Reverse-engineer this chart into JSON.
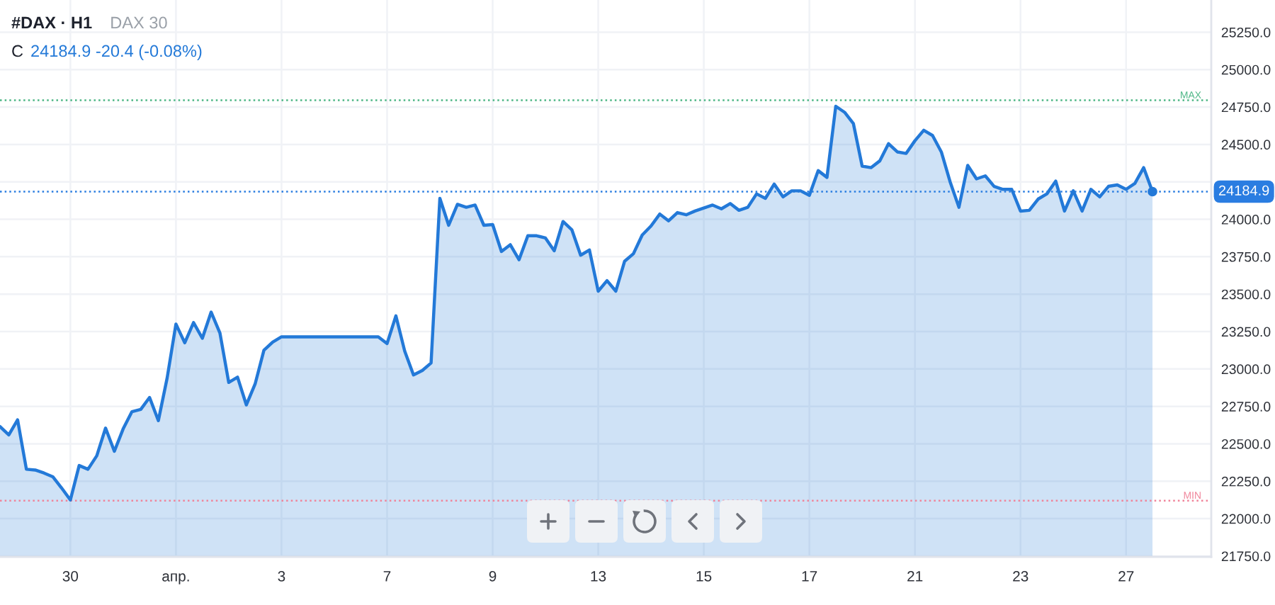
{
  "chart_data": {
    "type": "area",
    "title": "#DAX · H1",
    "subtitle": "DAX 30",
    "annotations": [
      "C",
      "24184.9 -20.4 (-0.08%)"
    ],
    "categories": [
      null,
      null,
      null,
      null,
      null,
      null,
      null,
      null,
      "30",
      null,
      null,
      null,
      null,
      null,
      null,
      null,
      null,
      null,
      null,
      null,
      "апр.",
      null,
      null,
      null,
      null,
      null,
      null,
      null,
      null,
      null,
      null,
      null,
      "3",
      null,
      null,
      null,
      null,
      null,
      null,
      null,
      null,
      null,
      null,
      null,
      "7",
      null,
      null,
      null,
      null,
      null,
      null,
      null,
      null,
      null,
      null,
      null,
      "9",
      null,
      null,
      null,
      null,
      null,
      null,
      null,
      null,
      null,
      null,
      null,
      "13",
      null,
      null,
      null,
      null,
      null,
      null,
      null,
      null,
      null,
      null,
      null,
      "15",
      null,
      null,
      null,
      null,
      null,
      null,
      null,
      null,
      null,
      null,
      null,
      "17",
      null,
      null,
      null,
      null,
      null,
      null,
      null,
      null,
      null,
      null,
      null,
      "21",
      null,
      null,
      null,
      null,
      null,
      null,
      null,
      null,
      null,
      null,
      null,
      "23",
      null,
      null,
      null,
      null,
      null,
      null,
      null,
      null,
      null,
      null,
      null,
      "27",
      null,
      null,
      null
    ],
    "ylim": [
      21745,
      25465
    ],
    "yticks": [
      {
        "value": 21750,
        "label": "21750.0"
      },
      {
        "value": 22000,
        "label": "22000.0"
      },
      {
        "value": 22250,
        "label": "22250.0"
      },
      {
        "value": 22500,
        "label": "22500.0"
      },
      {
        "value": 22750,
        "label": "22750.0"
      },
      {
        "value": 23000,
        "label": "23000.0"
      },
      {
        "value": 23250,
        "label": "23250.0"
      },
      {
        "value": 23500,
        "label": "23500.0"
      },
      {
        "value": 23750,
        "label": "23750.0"
      },
      {
        "value": 24000,
        "label": "24000.0"
      },
      {
        "value": 24250,
        "label": null
      },
      {
        "value": 24500,
        "label": "24500.0"
      },
      {
        "value": 24750,
        "label": "24750.0"
      },
      {
        "value": 25000,
        "label": "25000.0"
      },
      {
        "value": 25250,
        "label": "25250.0"
      }
    ],
    "grid": true,
    "series": [
      {
        "color": "#2379d8",
        "values": [
          22615,
          22560,
          22660,
          22330,
          22325,
          22305,
          22280,
          22205,
          22125,
          22355,
          22330,
          22420,
          22605,
          22450,
          22600,
          22715,
          22730,
          22810,
          22655,
          22940,
          23300,
          23175,
          23310,
          23205,
          23380,
          23240,
          22910,
          22945,
          22760,
          22900,
          23125,
          23180,
          23215,
          23215,
          23215,
          23215,
          23215,
          23215,
          23215,
          23215,
          23215,
          23215,
          23215,
          23215,
          23170,
          23355,
          23120,
          22960,
          22990,
          23040,
          24140,
          23960,
          24100,
          24080,
          24095,
          23960,
          23965,
          23785,
          23830,
          23730,
          23890,
          23890,
          23875,
          23790,
          23985,
          23930,
          23760,
          23795,
          23520,
          23590,
          23520,
          23720,
          23770,
          23895,
          23955,
          24035,
          23990,
          24045,
          24030,
          24055,
          24075,
          24095,
          24070,
          24105,
          24060,
          24080,
          24170,
          24140,
          24235,
          24150,
          24190,
          24190,
          24160,
          24325,
          24280,
          24755,
          24715,
          24640,
          24355,
          24345,
          24390,
          24505,
          24450,
          24440,
          24525,
          24595,
          24560,
          24450,
          24250,
          24080,
          24360,
          24270,
          24290,
          24220,
          24200,
          24200,
          24055,
          24060,
          24135,
          24170,
          24255,
          24055,
          24190,
          24055,
          24200,
          24150,
          24220,
          24230,
          24200,
          24240,
          24345,
          24184.9
        ]
      },
      {
        "type": "scatter",
        "marker": "circle",
        "color": "#2379d8",
        "values": [
          null,
          null,
          null,
          null,
          null,
          null,
          null,
          null,
          null,
          null,
          null,
          null,
          null,
          null,
          null,
          null,
          null,
          null,
          null,
          null,
          null,
          null,
          null,
          null,
          null,
          null,
          null,
          null,
          null,
          null,
          null,
          null,
          null,
          null,
          null,
          null,
          null,
          null,
          null,
          null,
          null,
          null,
          null,
          null,
          null,
          null,
          null,
          null,
          null,
          null,
          null,
          null,
          null,
          null,
          null,
          null,
          null,
          null,
          null,
          null,
          null,
          null,
          null,
          null,
          null,
          null,
          null,
          null,
          null,
          null,
          null,
          null,
          null,
          null,
          null,
          null,
          null,
          null,
          null,
          null,
          null,
          null,
          null,
          null,
          null,
          null,
          null,
          null,
          null,
          null,
          null,
          null,
          null,
          null,
          null,
          null,
          null,
          null,
          null,
          null,
          null,
          null,
          null,
          null,
          null,
          null,
          null,
          null,
          null,
          null,
          null,
          null,
          null,
          null,
          null,
          null,
          null,
          null,
          null,
          null,
          null,
          null,
          null,
          null,
          null,
          null,
          null,
          null,
          null,
          null,
          null,
          24184.9
        ]
      }
    ],
    "ref_lines": [
      {
        "axis": "y",
        "value": 24184.9,
        "label": "24184.9",
        "color": "#2a7de1",
        "line_style": "dotted"
      },
      {
        "axis": "y",
        "value": 24795,
        "label": "MAX",
        "color": "#4cb685",
        "line_style": "dotted"
      },
      {
        "axis": "y",
        "value": 22120,
        "label": "MIN",
        "color": "#f0849a",
        "line_style": "dotted"
      }
    ]
  }
}
